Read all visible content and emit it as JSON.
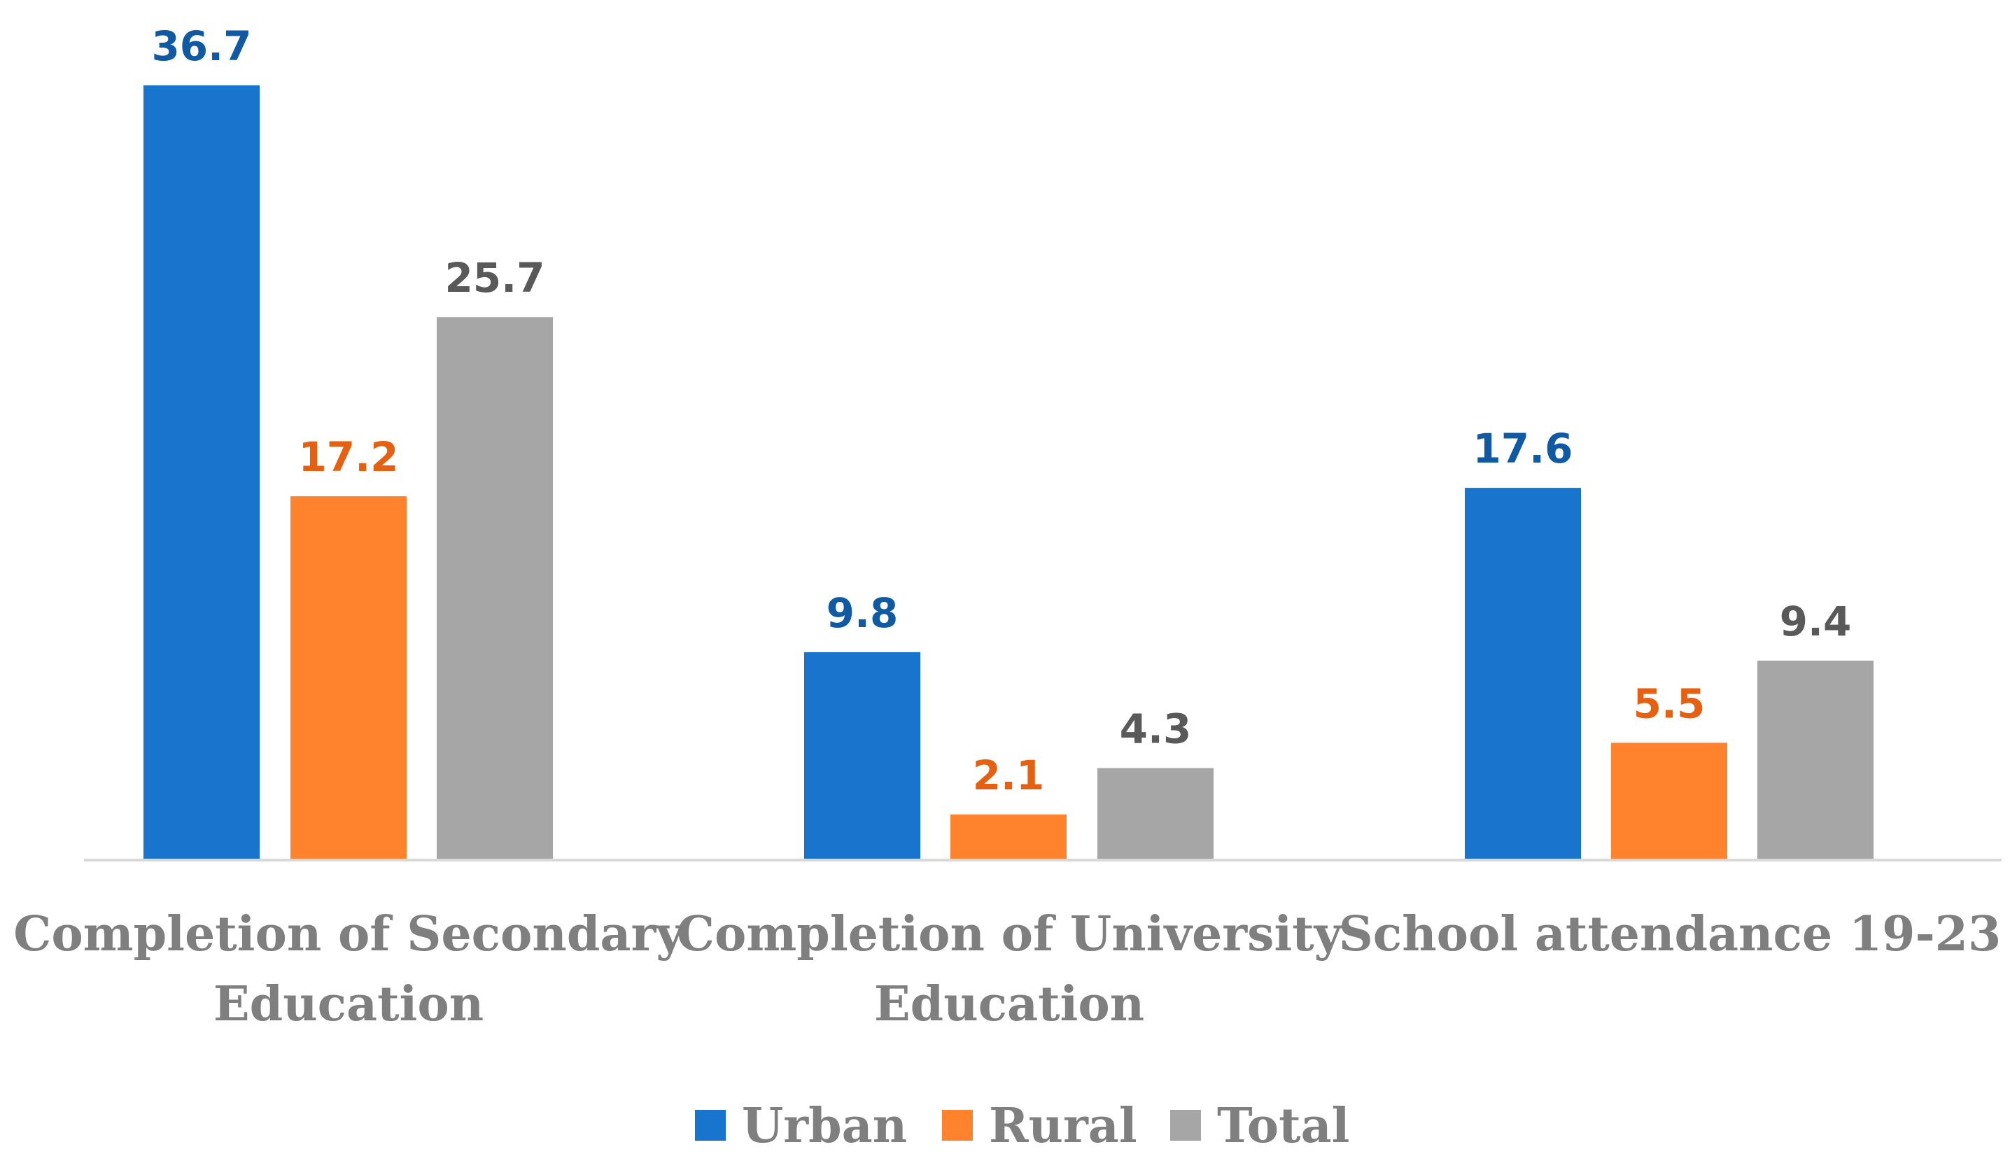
{
  "chart_data": {
    "type": "bar",
    "title": "",
    "xlabel": "",
    "ylabel": "",
    "ylim": [
      0,
      36.7
    ],
    "grid": false,
    "legend_position": "bottom",
    "categories": [
      [
        "Completion of Secondary",
        "Education"
      ],
      [
        "Completion of University",
        "Education"
      ],
      [
        "School attendance 19-23"
      ]
    ],
    "series": [
      {
        "name": "Urban",
        "values": [
          36.7,
          9.8,
          17.6
        ],
        "color": "#1874cd",
        "label_color": "#0f5aa3"
      },
      {
        "name": "Rural",
        "values": [
          17.2,
          2.1,
          5.5
        ],
        "color": "#ff832c",
        "label_color": "#e66012"
      },
      {
        "name": "Total",
        "values": [
          25.7,
          4.3,
          9.4
        ],
        "color": "#a6a6a6",
        "label_color": "#595959"
      }
    ],
    "axis_color": "#d9d9d9"
  }
}
